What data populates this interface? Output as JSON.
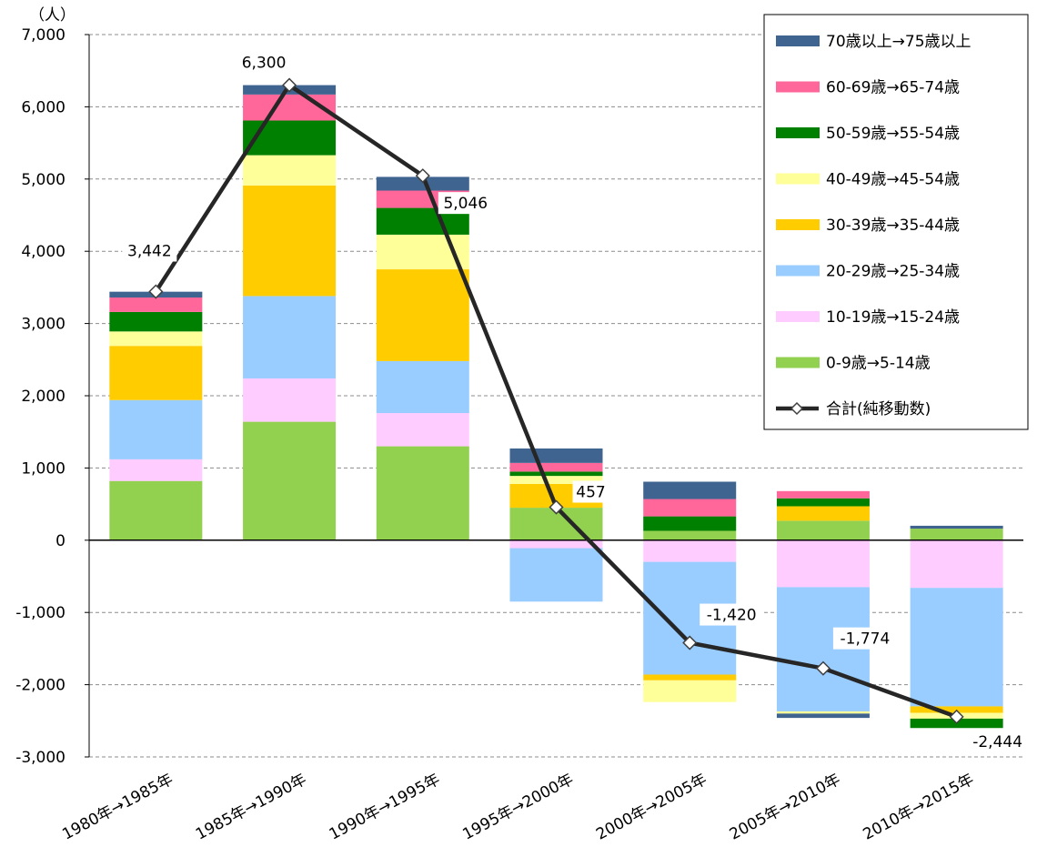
{
  "chart_data": {
    "type": "bar",
    "stacked": true,
    "unit_label": "（人）",
    "categories": [
      "1980年→1985年",
      "1985年→1990年",
      "1990年→1995年",
      "1995年→2000年",
      "2000年→2005年",
      "2005年→2010年",
      "2010年→2015年"
    ],
    "ylim": [
      -3000,
      7000
    ],
    "yticks": [
      -3000,
      -2000,
      -1000,
      0,
      1000,
      2000,
      3000,
      4000,
      5000,
      6000,
      7000
    ],
    "ytick_labels": [
      "-3,000",
      "-2,000",
      "-1,000",
      "0",
      "1,000",
      "2,000",
      "3,000",
      "4,000",
      "5,000",
      "6,000",
      "7,000"
    ],
    "grid": "horizontal dashed",
    "legend_position": "top-right",
    "series": [
      {
        "name": "0-9歳→5-14歳",
        "color": "#92d050",
        "values": [
          820,
          1640,
          1300,
          450,
          130,
          270,
          160
        ]
      },
      {
        "name": "10-19歳→15-24歳",
        "color": "#ffccff",
        "values": [
          300,
          600,
          460,
          -110,
          -300,
          -650,
          -660
        ]
      },
      {
        "name": "20-29歳→25-34歳",
        "color": "#99ccff",
        "values": [
          820,
          1140,
          720,
          -740,
          -1560,
          -1720,
          -1640
        ]
      },
      {
        "name": "30-39歳→35-44歳",
        "color": "#ffcc00",
        "values": [
          750,
          1530,
          1270,
          330,
          -80,
          200,
          -90
        ]
      },
      {
        "name": "40-49歳→45-54歳",
        "color": "#ffff99",
        "values": [
          200,
          420,
          480,
          110,
          -300,
          0,
          -80
        ]
      },
      {
        "name": "50-59歳→55-54歳",
        "color": "#008000",
        "values": [
          270,
          480,
          370,
          60,
          200,
          110,
          -130
        ]
      },
      {
        "name": "60-69歳→65-74歳",
        "color": "#ff6699",
        "values": [
          200,
          360,
          240,
          120,
          240,
          100,
          0
        ]
      },
      {
        "name": "70歳以上→75歳以上",
        "color": "#3f6490",
        "values": [
          80,
          130,
          190,
          200,
          240,
          0,
          40
        ]
      }
    ],
    "extra_negative": [
      {
        "name": "40-49歳→45-54歳",
        "color": "#ffff99",
        "values": [
          0,
          0,
          0,
          0,
          0,
          -30,
          0
        ]
      },
      {
        "name": "70歳以上→75歳以上",
        "color": "#3f6490",
        "values": [
          0,
          0,
          0,
          0,
          0,
          -60,
          0
        ]
      }
    ],
    "total_series": {
      "name": "合計(純移動数)",
      "color": "#262626",
      "values": [
        3442,
        6300,
        5046,
        457,
        -1420,
        -1774,
        -2444
      ],
      "labels": [
        "3,442",
        "6,300",
        "5,046",
        "457",
        "-1,420",
        "-1,774",
        "-2,444"
      ]
    },
    "legend_order": [
      "70歳以上→75歳以上",
      "60-69歳→65-74歳",
      "50-59歳→55-54歳",
      "40-49歳→45-54歳",
      "30-39歳→35-44歳",
      "20-29歳→25-34歳",
      "10-19歳→15-24歳",
      "0-9歳→5-14歳",
      "合計(純移動数)"
    ]
  }
}
